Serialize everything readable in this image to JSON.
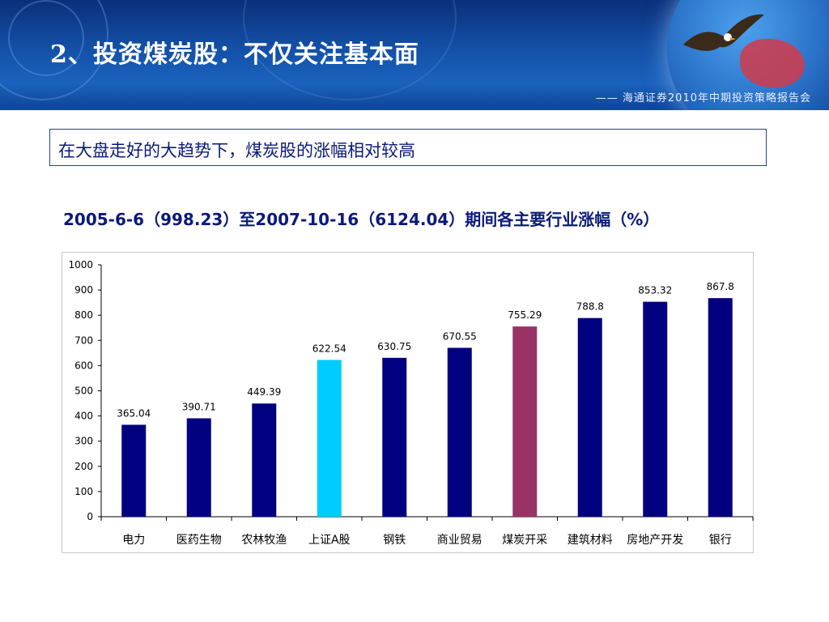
{
  "header": {
    "title": "2、投资煤炭股：不仅关注基本面",
    "report_tag": "—— 海通证券2010年中期投资策略报告会"
  },
  "headline": "在大盘走好的大趋势下，煤炭股的涨幅相对较高",
  "chart_title": "2005-6-6（998.23）至2007-10-16（6124.04）期间各主要行业涨幅（%）",
  "chart_data": {
    "type": "bar",
    "title": "2005-6-6（998.23）至2007-10-16（6124.04）期间各主要行业涨幅（%）",
    "xlabel": "",
    "ylabel": "",
    "ylim": [
      0,
      1000
    ],
    "yticks": [
      0,
      100,
      200,
      300,
      400,
      500,
      600,
      700,
      800,
      900,
      1000
    ],
    "grid": false,
    "legend": "none",
    "categories": [
      "电力",
      "医药生物",
      "农林牧渔",
      "上证A股",
      "钢铁",
      "商业贸易",
      "煤炭开采",
      "建筑材料",
      "房地产开发",
      "银行"
    ],
    "values": [
      365.04,
      390.71,
      449.39,
      622.54,
      630.75,
      670.55,
      755.29,
      788.8,
      853.32,
      867.8
    ],
    "value_labels": [
      "365.04",
      "390.71",
      "449.39",
      "622.54",
      "630.75",
      "670.55",
      "755.29",
      "788.8",
      "853.32",
      "867.8"
    ],
    "colors": [
      "#000080",
      "#000080",
      "#000080",
      "#00ccff",
      "#000080",
      "#000080",
      "#993366",
      "#000080",
      "#000080",
      "#000080"
    ]
  }
}
